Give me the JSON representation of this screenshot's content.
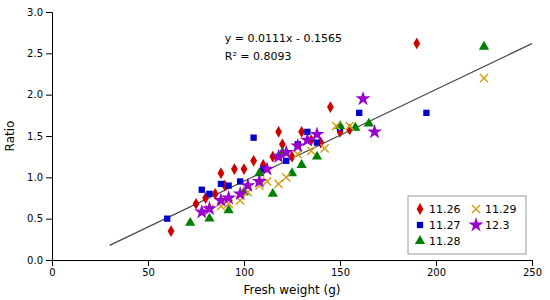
{
  "chart_data": {
    "type": "scatter",
    "xlabel": "Fresh weight (g)",
    "ylabel": "Ratio",
    "annotations": [
      "y = 0.0111x - 0.1565",
      "R² = 0.8093"
    ],
    "xlim": [
      0,
      250
    ],
    "ylim": [
      0,
      3
    ],
    "xticks": [
      0,
      50,
      100,
      150,
      200,
      250
    ],
    "yticks": [
      {
        "value": 0,
        "label": "0.0"
      },
      0.5,
      {
        "value": 1.0,
        "label": "1.0"
      },
      1.5,
      {
        "value": 2.0,
        "label": "2.0"
      },
      2.5,
      {
        "value": 3.0,
        "label": "3.0"
      }
    ],
    "grid": false,
    "legend": "lower right",
    "series": [
      {
        "name": "11.26",
        "color": "#cc0000",
        "marker": "diamond",
        "x": [
          62,
          75,
          80,
          85,
          88,
          90,
          95,
          100,
          105,
          110,
          115,
          118,
          120,
          125,
          130,
          135,
          140,
          145,
          150,
          155,
          190
        ],
        "values": [
          0.35,
          0.68,
          0.75,
          0.8,
          1.05,
          0.9,
          1.1,
          1.1,
          1.2,
          1.15,
          1.25,
          1.55,
          1.4,
          1.25,
          1.55,
          1.45,
          1.42,
          1.85,
          1.55,
          1.58,
          2.62
        ]
      },
      {
        "name": "11.27",
        "color": "#0000cc",
        "marker": "square",
        "x": [
          60,
          78,
          82,
          88,
          92,
          98,
          105,
          110,
          118,
          122,
          128,
          133,
          138,
          150,
          160,
          195
        ],
        "values": [
          0.5,
          0.85,
          0.8,
          0.92,
          0.9,
          0.95,
          1.48,
          1.1,
          1.25,
          1.2,
          1.4,
          1.55,
          1.42,
          1.6,
          1.78,
          1.78
        ]
      },
      {
        "name": "11.28",
        "color": "#008000",
        "marker": "triangle",
        "x": [
          72,
          82,
          92,
          100,
          108,
          115,
          120,
          125,
          130,
          138,
          150,
          158,
          165,
          225
        ],
        "values": [
          0.45,
          0.5,
          0.6,
          0.82,
          1.05,
          0.8,
          1.3,
          1.05,
          1.15,
          1.25,
          1.62,
          1.6,
          1.65,
          2.58
        ]
      },
      {
        "name": "11.29",
        "color": "#d4a017",
        "marker": "x",
        "x": [
          82,
          88,
          92,
          98,
          102,
          108,
          112,
          118,
          122,
          128,
          135,
          142,
          148,
          155,
          225
        ],
        "values": [
          0.62,
          0.65,
          0.68,
          0.72,
          0.82,
          0.9,
          0.95,
          0.92,
          1.0,
          1.28,
          1.32,
          1.35,
          1.62,
          1.62,
          2.2
        ]
      },
      {
        "name": "12.3",
        "color": "#9900cc",
        "marker": "star",
        "x": [
          78,
          82,
          88,
          92,
          98,
          102,
          108,
          112,
          118,
          122,
          128,
          133,
          138,
          162,
          168
        ],
        "values": [
          0.58,
          0.62,
          0.72,
          0.75,
          0.8,
          0.9,
          0.95,
          1.1,
          1.25,
          1.3,
          1.38,
          1.45,
          1.52,
          1.95,
          1.55
        ]
      },
      {
        "type": "line",
        "color": "#444444",
        "line_style": "solid",
        "x": [
          30,
          250
        ],
        "values": [
          0.1765,
          2.6185
        ]
      }
    ]
  }
}
